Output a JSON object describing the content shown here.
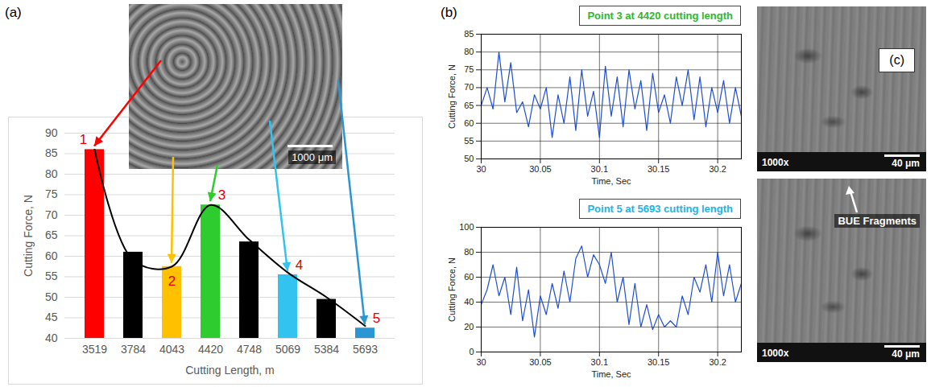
{
  "chart_data": [
    {
      "type": "bar",
      "panel": "(a)",
      "x_label": "Cutting Length, m",
      "y_label": "Cutting Force, N",
      "categories": [
        "3519",
        "3784",
        "4043",
        "4420",
        "4748",
        "5069",
        "5384",
        "5693"
      ],
      "ylim": [
        40,
        90
      ],
      "yticks": [
        40,
        45,
        50,
        55,
        60,
        65,
        70,
        75,
        80,
        85,
        90
      ],
      "grid": true,
      "series": [
        {
          "type": "bar",
          "values": [
            86,
            61,
            57.5,
            72.5,
            63.5,
            55.5,
            49.5,
            42.5
          ],
          "colors": [
            "#ff0000",
            "#000000",
            "#ffc000",
            "#2ecc2e",
            "#000000",
            "#33c3f0",
            "#000000",
            "#2a96d4"
          ],
          "point_labels": [
            "1",
            null,
            "2",
            "3",
            null,
            "4",
            null,
            "5"
          ]
        },
        {
          "type": "line",
          "color": "#000000",
          "line_style": "smooth",
          "values": [
            86,
            59,
            57.5,
            72.5,
            64,
            56,
            50,
            43
          ]
        }
      ]
    },
    {
      "type": "line",
      "panel": "(b)",
      "title": "Point 3 at 4420 cutting length",
      "x_label": "Time, Sec",
      "y_label": "Cutting Force, N",
      "xlim": [
        30,
        30.22
      ],
      "xticks": [
        30,
        30.05,
        30.1,
        30.15,
        30.2
      ],
      "ylim": [
        50,
        85
      ],
      "yticks": [
        50,
        55,
        60,
        65,
        70,
        75,
        80,
        85
      ],
      "grid": true,
      "x": [
        30,
        30.005,
        30.01,
        30.015,
        30.02,
        30.025,
        30.03,
        30.035,
        30.04,
        30.045,
        30.05,
        30.055,
        30.06,
        30.065,
        30.07,
        30.075,
        30.08,
        30.085,
        30.09,
        30.095,
        30.1,
        30.105,
        30.11,
        30.115,
        30.12,
        30.125,
        30.13,
        30.135,
        30.14,
        30.145,
        30.15,
        30.155,
        30.16,
        30.165,
        30.17,
        30.175,
        30.18,
        30.185,
        30.19,
        30.195,
        30.2,
        30.205,
        30.21,
        30.215,
        30.22
      ],
      "series": [
        {
          "color": "#1f4fd1",
          "values": [
            65,
            70,
            64,
            80,
            66,
            77,
            63,
            66,
            59,
            68,
            64,
            70,
            56,
            68,
            60,
            73,
            58,
            75,
            62,
            69,
            56,
            76,
            62,
            73,
            59,
            75,
            64,
            72,
            58,
            74,
            63,
            68,
            60,
            73,
            65,
            75,
            61,
            73,
            59,
            70,
            63,
            72,
            60,
            70,
            62
          ]
        }
      ]
    },
    {
      "type": "line",
      "title": "Point 5 at 5693 cutting length",
      "x_label": "Time, Sec",
      "y_label": "Cutting Force, N",
      "xlim": [
        30,
        30.22
      ],
      "xticks": [
        30,
        30.05,
        30.1,
        30.15,
        30.2
      ],
      "ylim": [
        0,
        100
      ],
      "yticks": [
        0,
        20,
        40,
        60,
        80,
        100
      ],
      "grid": true,
      "x": [
        30,
        30.005,
        30.01,
        30.015,
        30.02,
        30.025,
        30.03,
        30.035,
        30.04,
        30.045,
        30.05,
        30.055,
        30.06,
        30.065,
        30.07,
        30.075,
        30.08,
        30.085,
        30.09,
        30.095,
        30.1,
        30.105,
        30.11,
        30.115,
        30.12,
        30.125,
        30.13,
        30.135,
        30.14,
        30.145,
        30.15,
        30.155,
        30.16,
        30.165,
        30.17,
        30.175,
        30.18,
        30.185,
        30.19,
        30.195,
        30.2,
        30.205,
        30.21,
        30.215,
        30.22
      ],
      "series": [
        {
          "color": "#1f4fd1",
          "values": [
            38,
            50,
            70,
            45,
            60,
            30,
            68,
            25,
            50,
            12,
            45,
            30,
            55,
            35,
            65,
            40,
            75,
            85,
            60,
            78,
            70,
            55,
            80,
            40,
            60,
            22,
            55,
            20,
            38,
            18,
            30,
            20,
            25,
            20,
            45,
            30,
            60,
            48,
            70,
            40,
            80,
            45,
            70,
            40,
            55
          ]
        }
      ]
    }
  ],
  "images": [
    {
      "scale_bar": "1000 μm"
    },
    {
      "panel": "(c)",
      "magnification": "1000x",
      "scale_bar": "40 μm"
    },
    {
      "magnification": "1000x",
      "scale_bar": "40 μm",
      "annotation": "BUE Fragments"
    }
  ]
}
